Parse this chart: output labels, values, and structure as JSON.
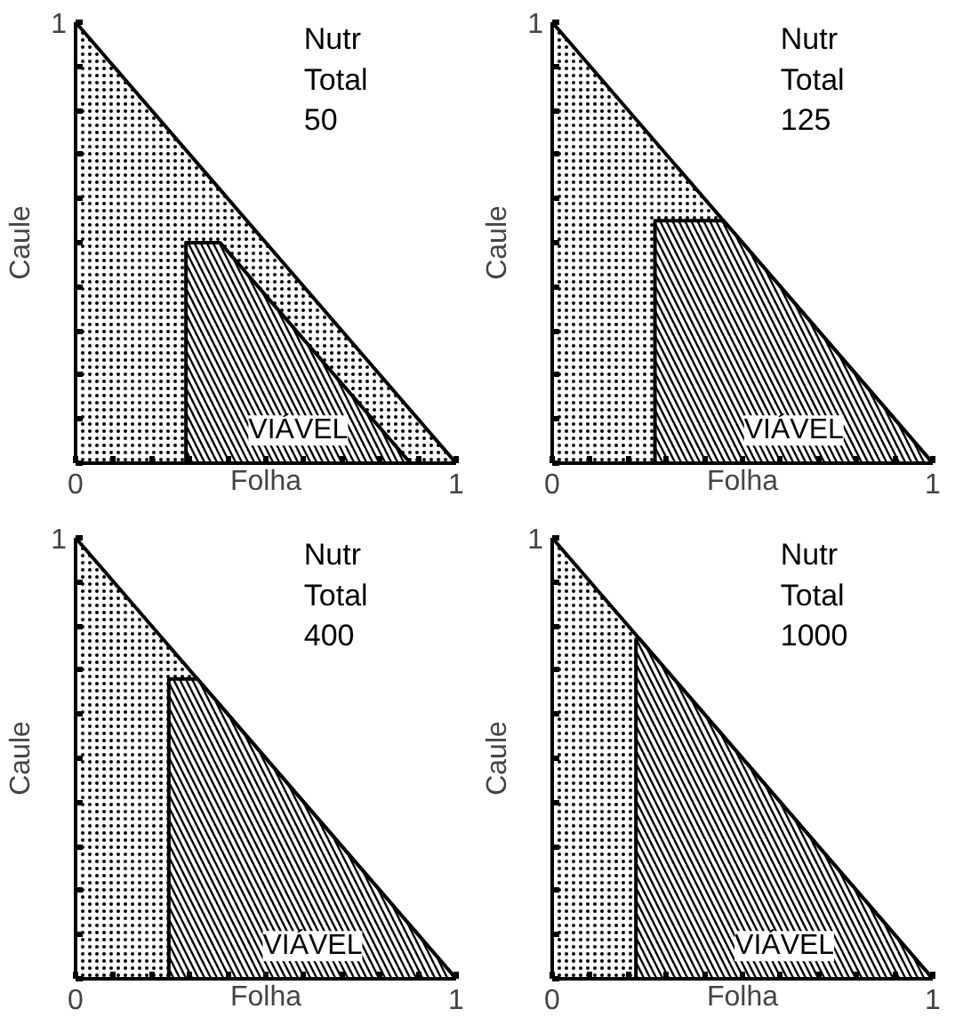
{
  "chart_data": [
    {
      "type": "area",
      "title": "Nutr Total 50",
      "xlabel": "Folha",
      "ylabel": "Caule",
      "xlim": [
        0,
        1
      ],
      "ylim": [
        0,
        1
      ],
      "xticks": [
        0,
        {
          "value": 0.1,
          "label": null
        },
        {
          "value": 0.2,
          "label": null
        },
        {
          "value": 0.3,
          "label": null
        },
        {
          "value": 0.4,
          "label": null
        },
        {
          "value": 0.5,
          "label": null
        },
        {
          "value": 0.6,
          "label": null
        },
        {
          "value": 0.7,
          "label": null
        },
        {
          "value": 0.8,
          "label": null
        },
        {
          "value": 0.9,
          "label": null
        },
        1
      ],
      "yticks": [
        {
          "value": 0,
          "label": null
        },
        {
          "value": 0.1,
          "label": null
        },
        {
          "value": 0.2,
          "label": null
        },
        {
          "value": 0.3,
          "label": null
        },
        {
          "value": 0.4,
          "label": null
        },
        {
          "value": 0.5,
          "label": null
        },
        {
          "value": 0.6,
          "label": null
        },
        {
          "value": 0.7,
          "label": null
        },
        {
          "value": 0.8,
          "label": null
        },
        {
          "value": 0.9,
          "label": null
        },
        1
      ],
      "series": [
        {
          "color": "#000000",
          "x": [
            0,
            1
          ],
          "values": [
            1,
            0
          ]
        },
        {
          "name": "VIÁVEL",
          "color": "#000000",
          "x": [
            0.29,
            0.29,
            0.38,
            0.88
          ],
          "values": [
            0,
            0.5,
            0.5,
            0
          ]
        }
      ]
    },
    {
      "type": "area",
      "title": "Nutr Total 125",
      "xlabel": "Folha",
      "ylabel": "Caule",
      "xlim": [
        0,
        1
      ],
      "ylim": [
        0,
        1
      ],
      "xticks": [
        0,
        {
          "value": 0.1,
          "label": null
        },
        {
          "value": 0.2,
          "label": null
        },
        {
          "value": 0.3,
          "label": null
        },
        {
          "value": 0.4,
          "label": null
        },
        {
          "value": 0.5,
          "label": null
        },
        {
          "value": 0.6,
          "label": null
        },
        {
          "value": 0.7,
          "label": null
        },
        {
          "value": 0.8,
          "label": null
        },
        {
          "value": 0.9,
          "label": null
        },
        1
      ],
      "yticks": [
        {
          "value": 0,
          "label": null
        },
        {
          "value": 0.1,
          "label": null
        },
        {
          "value": 0.2,
          "label": null
        },
        {
          "value": 0.3,
          "label": null
        },
        {
          "value": 0.4,
          "label": null
        },
        {
          "value": 0.5,
          "label": null
        },
        {
          "value": 0.6,
          "label": null
        },
        {
          "value": 0.7,
          "label": null
        },
        {
          "value": 0.8,
          "label": null
        },
        {
          "value": 0.9,
          "label": null
        },
        1
      ],
      "series": [
        {
          "color": "#000000",
          "x": [
            0,
            1
          ],
          "values": [
            1,
            0
          ]
        },
        {
          "name": "VIÁVEL",
          "color": "#000000",
          "x": [
            0.27,
            0.27,
            0.45,
            1
          ],
          "values": [
            0,
            0.55,
            0.55,
            0
          ]
        }
      ]
    },
    {
      "type": "area",
      "title": "Nutr Total 400",
      "xlabel": "Folha",
      "ylabel": "Caule",
      "xlim": [
        0,
        1
      ],
      "ylim": [
        0,
        1
      ],
      "xticks": [
        0,
        {
          "value": 0.1,
          "label": null
        },
        {
          "value": 0.2,
          "label": null
        },
        {
          "value": 0.3,
          "label": null
        },
        {
          "value": 0.4,
          "label": null
        },
        {
          "value": 0.5,
          "label": null
        },
        {
          "value": 0.6,
          "label": null
        },
        {
          "value": 0.7,
          "label": null
        },
        {
          "value": 0.8,
          "label": null
        },
        {
          "value": 0.9,
          "label": null
        },
        1
      ],
      "yticks": [
        {
          "value": 0,
          "label": null
        },
        {
          "value": 0.1,
          "label": null
        },
        {
          "value": 0.2,
          "label": null
        },
        {
          "value": 0.3,
          "label": null
        },
        {
          "value": 0.4,
          "label": null
        },
        {
          "value": 0.5,
          "label": null
        },
        {
          "value": 0.6,
          "label": null
        },
        {
          "value": 0.7,
          "label": null
        },
        {
          "value": 0.8,
          "label": null
        },
        {
          "value": 0.9,
          "label": null
        },
        1
      ],
      "series": [
        {
          "color": "#000000",
          "x": [
            0,
            1
          ],
          "values": [
            1,
            0
          ]
        },
        {
          "name": "VIÁVEL",
          "color": "#000000",
          "x": [
            0.245,
            0.245,
            0.32,
            1
          ],
          "values": [
            0,
            0.68,
            0.68,
            0
          ]
        }
      ]
    },
    {
      "type": "area",
      "title": "Nutr Total 1000",
      "xlabel": "Folha",
      "ylabel": "Caule",
      "xlim": [
        0,
        1
      ],
      "ylim": [
        0,
        1
      ],
      "xticks": [
        0,
        {
          "value": 0.1,
          "label": null
        },
        {
          "value": 0.2,
          "label": null
        },
        {
          "value": 0.3,
          "label": null
        },
        {
          "value": 0.4,
          "label": null
        },
        {
          "value": 0.5,
          "label": null
        },
        {
          "value": 0.6,
          "label": null
        },
        {
          "value": 0.7,
          "label": null
        },
        {
          "value": 0.8,
          "label": null
        },
        {
          "value": 0.9,
          "label": null
        },
        1
      ],
      "yticks": [
        {
          "value": 0,
          "label": null
        },
        {
          "value": 0.1,
          "label": null
        },
        {
          "value": 0.2,
          "label": null
        },
        {
          "value": 0.3,
          "label": null
        },
        {
          "value": 0.4,
          "label": null
        },
        {
          "value": 0.5,
          "label": null
        },
        {
          "value": 0.6,
          "label": null
        },
        {
          "value": 0.7,
          "label": null
        },
        {
          "value": 0.8,
          "label": null
        },
        {
          "value": 0.9,
          "label": null
        },
        1
      ],
      "series": [
        {
          "color": "#000000",
          "x": [
            0,
            1
          ],
          "values": [
            1,
            0
          ]
        },
        {
          "name": "VIÁVEL",
          "color": "#000000",
          "x": [
            0.22,
            0.22,
            0.23,
            1
          ],
          "values": [
            0,
            0.77,
            0.77,
            0
          ]
        }
      ]
    }
  ]
}
